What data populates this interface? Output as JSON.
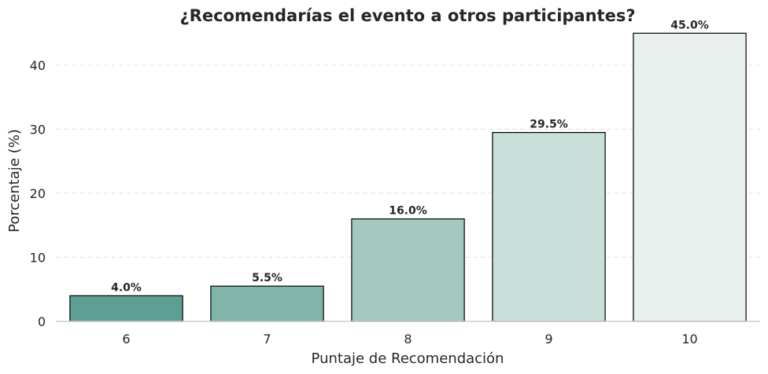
{
  "chart_data": {
    "type": "bar",
    "title": "¿Recomendarías el evento a otros participantes?",
    "xlabel": "Puntaje de Recomendación",
    "ylabel": "Porcentaje (%)",
    "categories": [
      "6",
      "7",
      "8",
      "9",
      "10"
    ],
    "values": [
      4.0,
      5.5,
      16.0,
      29.5,
      45.0
    ],
    "value_labels": [
      "4.0%",
      "5.5%",
      "16.0%",
      "29.5%",
      "45.0%"
    ],
    "ylim": [
      0,
      47
    ],
    "yticks": [
      0,
      10,
      20,
      30,
      40
    ],
    "grid": true,
    "bar_colors": [
      "#5e9f93",
      "#82b5aa",
      "#a5c9c1",
      "#c8dfda",
      "#e9f0ee"
    ],
    "edge_color": "#000000",
    "text_color": "#262626"
  }
}
